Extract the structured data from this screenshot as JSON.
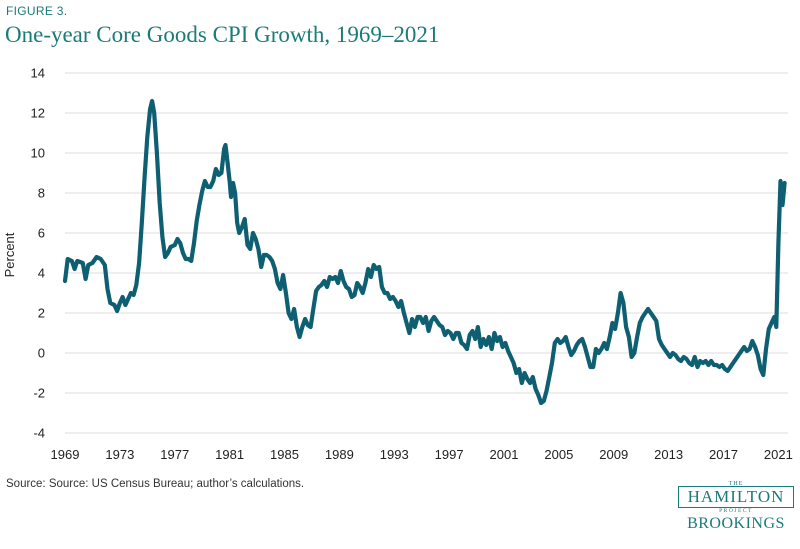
{
  "figure_label": "FIGURE 3.",
  "title": "One-year Core Goods CPI Growth, 1969–2021",
  "source": "Source: Source: US Census Bureau; author’s calculations.",
  "logo": {
    "the": "THE",
    "hamilton": "HAMILTON",
    "project": "PROJECT",
    "brookings": "BROOKINGS"
  },
  "colors": {
    "line": "#0f5f73",
    "accent": "#1b7a7a",
    "grid": "#dcdcdc"
  },
  "chart_data": {
    "type": "line",
    "title": "One-year Core Goods CPI Growth, 1969–2021",
    "xlabel": "",
    "ylabel": "Percent",
    "xlim": [
      1969,
      2021.7
    ],
    "ylim": [
      -4,
      14
    ],
    "x_ticks": [
      "1969",
      "1973",
      "1977",
      "1981",
      "1985",
      "1989",
      "1993",
      "1997",
      "2001",
      "2005",
      "2009",
      "2013",
      "2017",
      "2021"
    ],
    "y_ticks": [
      "-4",
      "-2",
      "0",
      "2",
      "4",
      "6",
      "8",
      "10",
      "12",
      "14"
    ],
    "grid": true,
    "legend": "none",
    "series": [
      {
        "values": [
          [
            1969.0,
            3.6
          ],
          [
            1969.2,
            4.7
          ],
          [
            1969.5,
            4.6
          ],
          [
            1969.7,
            4.2
          ],
          [
            1969.9,
            4.6
          ],
          [
            1970.3,
            4.5
          ],
          [
            1970.5,
            3.7
          ],
          [
            1970.7,
            4.4
          ],
          [
            1971.0,
            4.5
          ],
          [
            1971.3,
            4.8
          ],
          [
            1971.6,
            4.7
          ],
          [
            1971.9,
            4.4
          ],
          [
            1972.1,
            3.2
          ],
          [
            1972.3,
            2.5
          ],
          [
            1972.6,
            2.4
          ],
          [
            1972.8,
            2.1
          ],
          [
            1973.0,
            2.5
          ],
          [
            1973.2,
            2.8
          ],
          [
            1973.4,
            2.4
          ],
          [
            1973.6,
            2.7
          ],
          [
            1973.8,
            3.0
          ],
          [
            1974.0,
            2.9
          ],
          [
            1974.2,
            3.4
          ],
          [
            1974.4,
            4.5
          ],
          [
            1974.6,
            6.5
          ],
          [
            1974.8,
            8.8
          ],
          [
            1975.0,
            10.8
          ],
          [
            1975.2,
            12.2
          ],
          [
            1975.35,
            12.6
          ],
          [
            1975.5,
            12.0
          ],
          [
            1975.7,
            10.0
          ],
          [
            1975.9,
            7.5
          ],
          [
            1976.1,
            5.8
          ],
          [
            1976.3,
            4.8
          ],
          [
            1976.5,
            5.0
          ],
          [
            1976.7,
            5.3
          ],
          [
            1977.0,
            5.4
          ],
          [
            1977.2,
            5.7
          ],
          [
            1977.4,
            5.5
          ],
          [
            1977.6,
            5.0
          ],
          [
            1977.8,
            4.7
          ],
          [
            1978.0,
            4.7
          ],
          [
            1978.2,
            4.6
          ],
          [
            1978.4,
            5.5
          ],
          [
            1978.6,
            6.6
          ],
          [
            1978.8,
            7.4
          ],
          [
            1979.0,
            8.1
          ],
          [
            1979.2,
            8.6
          ],
          [
            1979.4,
            8.3
          ],
          [
            1979.6,
            8.3
          ],
          [
            1979.8,
            8.6
          ],
          [
            1980.0,
            9.2
          ],
          [
            1980.2,
            8.9
          ],
          [
            1980.4,
            9.0
          ],
          [
            1980.6,
            10.2
          ],
          [
            1980.7,
            10.4
          ],
          [
            1980.85,
            9.5
          ],
          [
            1981.0,
            8.6
          ],
          [
            1981.1,
            7.8
          ],
          [
            1981.25,
            8.5
          ],
          [
            1981.4,
            8.0
          ],
          [
            1981.55,
            6.5
          ],
          [
            1981.7,
            6.0
          ],
          [
            1981.9,
            6.3
          ],
          [
            1982.1,
            6.7
          ],
          [
            1982.3,
            5.4
          ],
          [
            1982.5,
            5.2
          ],
          [
            1982.7,
            6.0
          ],
          [
            1982.9,
            5.7
          ],
          [
            1983.1,
            5.2
          ],
          [
            1983.3,
            4.3
          ],
          [
            1983.5,
            4.9
          ],
          [
            1983.7,
            4.9
          ],
          [
            1983.9,
            4.8
          ],
          [
            1984.1,
            4.6
          ],
          [
            1984.3,
            4.2
          ],
          [
            1984.5,
            3.5
          ],
          [
            1984.7,
            3.2
          ],
          [
            1984.9,
            3.9
          ],
          [
            1985.1,
            3.0
          ],
          [
            1985.3,
            2.0
          ],
          [
            1985.5,
            1.7
          ],
          [
            1985.7,
            2.2
          ],
          [
            1985.9,
            1.3
          ],
          [
            1986.1,
            0.8
          ],
          [
            1986.3,
            1.3
          ],
          [
            1986.5,
            1.7
          ],
          [
            1986.7,
            1.4
          ],
          [
            1986.9,
            1.3
          ],
          [
            1987.1,
            2.2
          ],
          [
            1987.3,
            3.1
          ],
          [
            1987.5,
            3.3
          ],
          [
            1987.7,
            3.4
          ],
          [
            1987.9,
            3.6
          ],
          [
            1988.1,
            3.3
          ],
          [
            1988.3,
            3.8
          ],
          [
            1988.5,
            3.7
          ],
          [
            1988.7,
            3.8
          ],
          [
            1988.9,
            3.5
          ],
          [
            1989.1,
            4.1
          ],
          [
            1989.3,
            3.6
          ],
          [
            1989.5,
            3.3
          ],
          [
            1989.7,
            3.2
          ],
          [
            1989.9,
            2.8
          ],
          [
            1990.1,
            2.9
          ],
          [
            1990.3,
            3.5
          ],
          [
            1990.5,
            3.3
          ],
          [
            1990.7,
            3.0
          ],
          [
            1990.9,
            3.5
          ],
          [
            1991.1,
            4.2
          ],
          [
            1991.3,
            3.8
          ],
          [
            1991.5,
            4.4
          ],
          [
            1991.7,
            4.2
          ],
          [
            1991.9,
            4.3
          ],
          [
            1992.1,
            3.3
          ],
          [
            1992.3,
            3.0
          ],
          [
            1992.5,
            3.0
          ],
          [
            1992.7,
            2.7
          ],
          [
            1992.9,
            2.8
          ],
          [
            1993.1,
            2.6
          ],
          [
            1993.3,
            2.3
          ],
          [
            1993.5,
            2.6
          ],
          [
            1993.7,
            2.0
          ],
          [
            1993.9,
            1.5
          ],
          [
            1994.1,
            1.0
          ],
          [
            1994.3,
            1.7
          ],
          [
            1994.5,
            1.3
          ],
          [
            1994.7,
            1.8
          ],
          [
            1994.9,
            1.8
          ],
          [
            1995.1,
            1.5
          ],
          [
            1995.3,
            1.8
          ],
          [
            1995.5,
            1.1
          ],
          [
            1995.7,
            1.6
          ],
          [
            1995.9,
            1.8
          ],
          [
            1996.1,
            1.6
          ],
          [
            1996.3,
            1.4
          ],
          [
            1996.5,
            1.3
          ],
          [
            1996.7,
            0.9
          ],
          [
            1996.9,
            1.1
          ],
          [
            1997.1,
            1.0
          ],
          [
            1997.3,
            0.7
          ],
          [
            1997.5,
            1.0
          ],
          [
            1997.7,
            1.0
          ],
          [
            1997.9,
            0.5
          ],
          [
            1998.1,
            0.4
          ],
          [
            1998.3,
            0.2
          ],
          [
            1998.5,
            0.9
          ],
          [
            1998.7,
            1.1
          ],
          [
            1998.9,
            0.7
          ],
          [
            1999.1,
            1.3
          ],
          [
            1999.3,
            0.3
          ],
          [
            1999.5,
            0.7
          ],
          [
            1999.7,
            0.4
          ],
          [
            1999.9,
            0.8
          ],
          [
            2000.1,
            0.2
          ],
          [
            2000.3,
            1.0
          ],
          [
            2000.5,
            0.6
          ],
          [
            2000.7,
            0.8
          ],
          [
            2000.9,
            0.3
          ],
          [
            2001.1,
            0.5
          ],
          [
            2001.3,
            0.1
          ],
          [
            2001.5,
            -0.2
          ],
          [
            2001.7,
            -0.5
          ],
          [
            2001.9,
            -1.0
          ],
          [
            2002.1,
            -0.8
          ],
          [
            2002.3,
            -1.5
          ],
          [
            2002.5,
            -1.0
          ],
          [
            2002.7,
            -1.3
          ],
          [
            2002.9,
            -1.5
          ],
          [
            2003.1,
            -1.2
          ],
          [
            2003.3,
            -1.8
          ],
          [
            2003.5,
            -2.1
          ],
          [
            2003.7,
            -2.5
          ],
          [
            2003.9,
            -2.4
          ],
          [
            2004.1,
            -1.9
          ],
          [
            2004.3,
            -1.2
          ],
          [
            2004.5,
            -0.5
          ],
          [
            2004.7,
            0.5
          ],
          [
            2004.9,
            0.7
          ],
          [
            2005.1,
            0.5
          ],
          [
            2005.3,
            0.6
          ],
          [
            2005.5,
            0.8
          ],
          [
            2005.7,
            0.3
          ],
          [
            2005.9,
            -0.1
          ],
          [
            2006.1,
            0.1
          ],
          [
            2006.3,
            0.4
          ],
          [
            2006.5,
            0.6
          ],
          [
            2006.7,
            0.7
          ],
          [
            2006.9,
            0.3
          ],
          [
            2007.1,
            -0.2
          ],
          [
            2007.3,
            -0.7
          ],
          [
            2007.5,
            -0.7
          ],
          [
            2007.7,
            0.2
          ],
          [
            2007.9,
            0.0
          ],
          [
            2008.1,
            0.2
          ],
          [
            2008.3,
            0.5
          ],
          [
            2008.5,
            0.2
          ],
          [
            2008.7,
            0.8
          ],
          [
            2008.9,
            1.5
          ],
          [
            2009.1,
            1.2
          ],
          [
            2009.3,
            2.0
          ],
          [
            2009.5,
            3.0
          ],
          [
            2009.7,
            2.5
          ],
          [
            2009.9,
            1.3
          ],
          [
            2010.1,
            0.8
          ],
          [
            2010.3,
            -0.2
          ],
          [
            2010.5,
            0.0
          ],
          [
            2010.7,
            0.8
          ],
          [
            2010.9,
            1.5
          ],
          [
            2011.1,
            1.8
          ],
          [
            2011.3,
            2.0
          ],
          [
            2011.5,
            2.2
          ],
          [
            2011.7,
            2.0
          ],
          [
            2011.9,
            1.8
          ],
          [
            2012.1,
            1.6
          ],
          [
            2012.3,
            0.7
          ],
          [
            2012.5,
            0.4
          ],
          [
            2012.7,
            0.2
          ],
          [
            2012.9,
            0.0
          ],
          [
            2013.1,
            -0.2
          ],
          [
            2013.3,
            0.0
          ],
          [
            2013.5,
            -0.1
          ],
          [
            2013.7,
            -0.3
          ],
          [
            2013.9,
            -0.4
          ],
          [
            2014.1,
            -0.2
          ],
          [
            2014.3,
            -0.3
          ],
          [
            2014.5,
            -0.5
          ],
          [
            2014.7,
            -0.6
          ],
          [
            2014.9,
            -0.2
          ],
          [
            2015.1,
            -0.7
          ],
          [
            2015.3,
            -0.4
          ],
          [
            2015.5,
            -0.5
          ],
          [
            2015.7,
            -0.4
          ],
          [
            2015.9,
            -0.6
          ],
          [
            2016.1,
            -0.4
          ],
          [
            2016.3,
            -0.6
          ],
          [
            2016.5,
            -0.6
          ],
          [
            2016.7,
            -0.7
          ],
          [
            2016.9,
            -0.6
          ],
          [
            2017.1,
            -0.8
          ],
          [
            2017.3,
            -0.9
          ],
          [
            2017.5,
            -0.7
          ],
          [
            2017.7,
            -0.5
          ],
          [
            2017.9,
            -0.3
          ],
          [
            2018.1,
            -0.1
          ],
          [
            2018.3,
            0.1
          ],
          [
            2018.5,
            0.3
          ],
          [
            2018.7,
            0.1
          ],
          [
            2018.9,
            0.2
          ],
          [
            2019.1,
            0.6
          ],
          [
            2019.3,
            0.3
          ],
          [
            2019.5,
            -0.1
          ],
          [
            2019.7,
            -0.8
          ],
          [
            2019.9,
            -1.1
          ],
          [
            2020.1,
            0.2
          ],
          [
            2020.3,
            1.2
          ],
          [
            2020.5,
            1.5
          ],
          [
            2020.7,
            1.8
          ],
          [
            2020.85,
            1.3
          ],
          [
            2021.0,
            5.5
          ],
          [
            2021.15,
            8.6
          ],
          [
            2021.3,
            7.4
          ],
          [
            2021.45,
            8.5
          ]
        ]
      }
    ]
  }
}
